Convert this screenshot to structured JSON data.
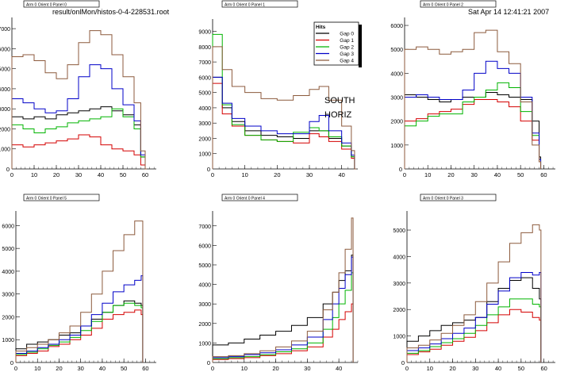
{
  "header": {
    "file_label": "result/onlMon/histos-0-4-228531.root",
    "date_label": "Sat Apr 14 12:41:21 2007"
  },
  "annotation": {
    "line1": "SOUTH",
    "line2": "HORIZ"
  },
  "legend": {
    "title": "Hits",
    "entries": [
      "Gap 0",
      "Gap 1",
      "Gap 2",
      "Gap 3",
      "Gap 4"
    ]
  },
  "colors": {
    "Gap 0": "#000000",
    "Gap 1": "#d40000",
    "Gap 2": "#00b400",
    "Gap 3": "#0000c8",
    "Gap 4": "#8c5a3c"
  },
  "chart_data": [
    {
      "type": "line",
      "title": "Arm 0 Orient 0 Panel 0",
      "xlim": [
        0,
        65
      ],
      "ylim": [
        0,
        7400
      ],
      "xticks": [
        0,
        10,
        20,
        30,
        40,
        50,
        60
      ],
      "yticks": [
        1000,
        2000,
        3000,
        4000,
        5000,
        6000,
        7000
      ],
      "x": [
        0,
        5,
        10,
        15,
        20,
        25,
        30,
        35,
        40,
        45,
        50,
        55,
        58,
        60
      ],
      "series": [
        {
          "name": "Gap 0",
          "values": [
            2600,
            2500,
            2600,
            2500,
            2700,
            2800,
            2900,
            3000,
            3100,
            2900,
            2700,
            2200,
            600,
            0
          ]
        },
        {
          "name": "Gap 1",
          "values": [
            1200,
            1100,
            1200,
            1300,
            1400,
            1500,
            1700,
            1600,
            1200,
            1000,
            900,
            700,
            200,
            0
          ]
        },
        {
          "name": "Gap 2",
          "values": [
            2200,
            2000,
            1800,
            2000,
            2100,
            2300,
            2400,
            2500,
            2600,
            3000,
            2600,
            2000,
            600,
            0
          ]
        },
        {
          "name": "Gap 3",
          "values": [
            3500,
            3300,
            3000,
            2800,
            2900,
            3500,
            4600,
            5200,
            5000,
            4000,
            3200,
            2400,
            700,
            0
          ]
        },
        {
          "name": "Gap 4",
          "values": [
            5600,
            5700,
            5400,
            4800,
            4500,
            5200,
            6300,
            6900,
            6700,
            5700,
            4600,
            3300,
            900,
            0
          ]
        }
      ]
    },
    {
      "type": "line",
      "title": "Arm 0 Orient 0 Panel 1",
      "xlim": [
        0,
        45
      ],
      "ylim": [
        0,
        9600
      ],
      "xticks": [
        0,
        10,
        20,
        30,
        40
      ],
      "yticks": [
        1000,
        2000,
        3000,
        4000,
        5000,
        6000,
        7000,
        8000,
        9000
      ],
      "x": [
        0,
        3,
        6,
        10,
        15,
        20,
        25,
        30,
        33,
        36,
        40,
        43,
        44
      ],
      "series": [
        {
          "name": "Gap 0",
          "values": [
            6000,
            4000,
            3100,
            2500,
            2200,
            2100,
            2000,
            2500,
            2500,
            2000,
            1500,
            800,
            0
          ]
        },
        {
          "name": "Gap 1",
          "values": [
            5600,
            3600,
            2800,
            2200,
            1900,
            1800,
            1700,
            2300,
            2100,
            1800,
            1300,
            700,
            0
          ]
        },
        {
          "name": "Gap 2",
          "values": [
            8800,
            4200,
            2900,
            2200,
            1900,
            1800,
            2400,
            2700,
            2500,
            2100,
            1500,
            800,
            0
          ]
        },
        {
          "name": "Gap 3",
          "values": [
            6000,
            4300,
            3300,
            2800,
            2500,
            2300,
            2300,
            3100,
            3500,
            2500,
            1700,
            900,
            0
          ]
        },
        {
          "name": "Gap 4",
          "values": [
            8000,
            6500,
            5400,
            5000,
            4600,
            4500,
            4800,
            5200,
            5400,
            4500,
            2800,
            1200,
            0
          ]
        }
      ]
    },
    {
      "type": "line",
      "title": "Arm 0 Orient 0 Panel 2",
      "xlim": [
        0,
        65
      ],
      "ylim": [
        0,
        6200
      ],
      "xticks": [
        0,
        10,
        20,
        30,
        40,
        50,
        60
      ],
      "yticks": [
        1000,
        2000,
        3000,
        4000,
        5000,
        6000
      ],
      "x": [
        0,
        5,
        10,
        15,
        20,
        25,
        30,
        35,
        40,
        45,
        50,
        55,
        58
      ],
      "series": [
        {
          "name": "Gap 0",
          "values": [
            3100,
            3000,
            2900,
            2800,
            2900,
            3000,
            3000,
            3200,
            3100,
            3000,
            2900,
            2000,
            500
          ]
        },
        {
          "name": "Gap 1",
          "values": [
            2000,
            2100,
            2300,
            2400,
            2500,
            2700,
            2900,
            2900,
            2800,
            2600,
            2000,
            1200,
            300
          ]
        },
        {
          "name": "Gap 2",
          "values": [
            1800,
            2000,
            2200,
            2300,
            2300,
            2800,
            3000,
            3300,
            3600,
            3400,
            2400,
            1400,
            400
          ]
        },
        {
          "name": "Gap 3",
          "values": [
            3000,
            3100,
            3000,
            2900,
            2900,
            3300,
            4000,
            4500,
            4200,
            4000,
            3000,
            1500,
            400
          ]
        },
        {
          "name": "Gap 4",
          "values": [
            5000,
            5100,
            5000,
            4800,
            4900,
            5000,
            5700,
            5800,
            4900,
            4400,
            2800,
            1000,
            300
          ]
        }
      ]
    },
    {
      "type": "line",
      "title": "Arm 0 Orient 0 Panel 5",
      "xlim": [
        0,
        65
      ],
      "ylim": [
        0,
        6500
      ],
      "xticks": [
        0,
        10,
        20,
        30,
        40,
        50,
        60
      ],
      "yticks": [
        1000,
        2000,
        3000,
        4000,
        5000,
        6000
      ],
      "x": [
        0,
        5,
        10,
        15,
        20,
        25,
        30,
        35,
        40,
        45,
        50,
        55,
        58
      ],
      "series": [
        {
          "name": "Gap 0",
          "values": [
            600,
            800,
            900,
            1000,
            1200,
            1300,
            1600,
            1900,
            2200,
            2500,
            2700,
            2600,
            2500
          ]
        },
        {
          "name": "Gap 1",
          "values": [
            300,
            400,
            500,
            700,
            800,
            1000,
            1200,
            1500,
            1900,
            2100,
            2200,
            2300,
            2100
          ]
        },
        {
          "name": "Gap 2",
          "values": [
            350,
            450,
            600,
            750,
            900,
            1100,
            1400,
            1800,
            2200,
            2500,
            2600,
            2500,
            2400
          ]
        },
        {
          "name": "Gap 3",
          "values": [
            400,
            500,
            650,
            800,
            1000,
            1200,
            1600,
            2100,
            2600,
            3100,
            3400,
            3600,
            3800
          ]
        },
        {
          "name": "Gap 4",
          "values": [
            500,
            650,
            800,
            1000,
            1300,
            1600,
            2200,
            3000,
            4000,
            4900,
            5600,
            6200,
            6200
          ]
        }
      ]
    },
    {
      "type": "line",
      "title": "Arm 0 Orient 0 Panel 4",
      "xlim": [
        0,
        46
      ],
      "ylim": [
        0,
        7600
      ],
      "xticks": [
        0,
        10,
        20,
        30,
        40
      ],
      "yticks": [
        1000,
        2000,
        3000,
        4000,
        5000,
        6000,
        7000
      ],
      "x": [
        0,
        5,
        10,
        15,
        20,
        25,
        30,
        35,
        38,
        40,
        42,
        44
      ],
      "series": [
        {
          "name": "Gap 0",
          "values": [
            900,
            1000,
            1200,
            1400,
            1600,
            1900,
            2300,
            3000,
            3600,
            4200,
            4700,
            5500
          ]
        },
        {
          "name": "Gap 1",
          "values": [
            150,
            200,
            250,
            350,
            450,
            600,
            800,
            1300,
            1700,
            2200,
            2600,
            3000
          ]
        },
        {
          "name": "Gap 2",
          "values": [
            200,
            250,
            300,
            400,
            550,
            700,
            1000,
            1700,
            2300,
            3000,
            3700,
            4600
          ]
        },
        {
          "name": "Gap 3",
          "values": [
            250,
            300,
            400,
            500,
            650,
            900,
            1300,
            2200,
            3000,
            3800,
            4500,
            5400
          ]
        },
        {
          "name": "Gap 4",
          "values": [
            300,
            350,
            450,
            600,
            800,
            1100,
            1600,
            2700,
            3600,
            4600,
            5800,
            7400
          ]
        }
      ]
    },
    {
      "type": "line",
      "title": "Arm 0 Orient 0 Panel 3",
      "xlim": [
        0,
        65
      ],
      "ylim": [
        0,
        5600
      ],
      "xticks": [
        0,
        10,
        20,
        30,
        40,
        50,
        60
      ],
      "yticks": [
        1000,
        2000,
        3000,
        4000,
        5000
      ],
      "x": [
        0,
        5,
        10,
        15,
        20,
        25,
        30,
        35,
        40,
        45,
        50,
        55,
        58
      ],
      "series": [
        {
          "name": "Gap 0",
          "values": [
            800,
            1000,
            1200,
            1400,
            1500,
            1600,
            1700,
            2300,
            2800,
            3100,
            3200,
            2800,
            2400
          ]
        },
        {
          "name": "Gap 1",
          "values": [
            300,
            400,
            500,
            650,
            800,
            950,
            1200,
            1500,
            1800,
            2000,
            1900,
            1700,
            1600
          ]
        },
        {
          "name": "Gap 2",
          "values": [
            350,
            450,
            600,
            750,
            900,
            1100,
            1400,
            1800,
            2100,
            2400,
            2400,
            2200,
            2100
          ]
        },
        {
          "name": "Gap 3",
          "values": [
            450,
            550,
            700,
            900,
            1100,
            1300,
            1700,
            2200,
            2700,
            3200,
            3400,
            3300,
            3400
          ]
        },
        {
          "name": "Gap 4",
          "values": [
            550,
            650,
            850,
            1100,
            1400,
            1800,
            2300,
            3000,
            3800,
            4500,
            4900,
            5200,
            5000
          ]
        }
      ]
    }
  ]
}
